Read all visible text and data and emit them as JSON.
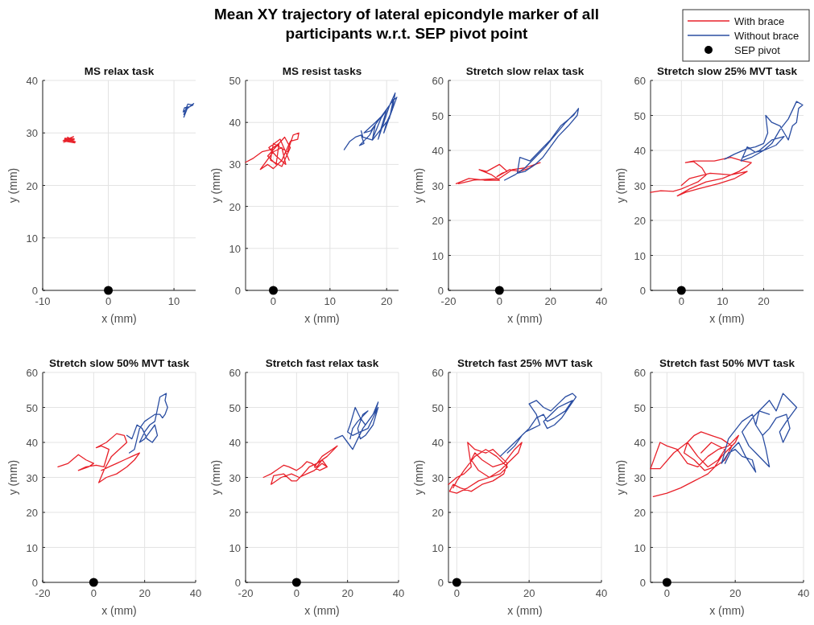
{
  "chart_data": [
    {
      "type": "line",
      "title": "MS relax task",
      "xlabel": "x (mm)",
      "ylabel": "y (mm)",
      "xlim": [
        -10,
        13.3
      ],
      "xticks": [
        -10,
        0,
        10
      ],
      "ylim": [
        0,
        40
      ],
      "yticks": [
        0,
        10,
        20,
        30,
        40
      ],
      "grid": true,
      "annotations": [
        "Mean XY trajectory of lateral epicondyle marker of all participants w.r.t. SEP pivot point"
      ],
      "series": [
        {
          "color": "#e8212a",
          "x": [
            -6.8,
            -5.2,
            -6.6,
            -5.0,
            -6.5,
            -5.3,
            -6.9,
            -5.1,
            -6.2,
            -5.6,
            -6.7,
            -5.2
          ],
          "values": [
            28.2,
            28.9,
            29.0,
            28.3,
            28.6,
            29.3,
            28.5,
            28.1,
            29.2,
            28.4,
            28.8,
            28.7
          ]
        },
        {
          "color": "#2b4ea2",
          "x": [
            11.5,
            12.0,
            12.6,
            13.0,
            12.4,
            11.6,
            11.4,
            12.2,
            12.9,
            12.1,
            11.7,
            11.5
          ],
          "values": [
            33.0,
            34.6,
            35.2,
            35.6,
            35.0,
            34.8,
            34.0,
            34.9,
            35.3,
            35.5,
            34.2,
            33.5
          ]
        },
        {
          "type": "scatter",
          "marker": "circle",
          "color": "#000000",
          "x": [
            0
          ],
          "values": [
            0
          ]
        }
      ]
    },
    {
      "type": "line",
      "title": "MS resist tasks",
      "xlabel": "x (mm)",
      "ylabel": "y (mm)",
      "xlim": [
        -4.9,
        22.1
      ],
      "xticks": [
        0,
        10,
        20
      ],
      "ylim": [
        0,
        50
      ],
      "yticks": [
        0,
        10,
        20,
        30,
        40,
        50
      ],
      "grid": true,
      "series": [
        {
          "color": "#e8212a",
          "x": [
            -4.9,
            -3.5,
            -2,
            -0.5,
            1,
            0.5,
            -1,
            2,
            3,
            1.5,
            -0.5,
            0,
            2.5,
            3.5,
            4.5,
            4.3,
            3,
            1.5,
            0,
            -1,
            -2.3,
            0,
            1.5,
            2.2,
            0.5,
            -0.8,
            1.2,
            2.8
          ],
          "values": [
            30.5,
            31.5,
            33,
            33.5,
            35,
            30,
            32,
            36.5,
            34,
            29.5,
            31,
            35,
            33,
            37,
            37.5,
            36,
            35.5,
            31,
            29,
            30,
            28.8,
            33,
            34,
            30,
            32,
            34,
            36,
            31
          ]
        },
        {
          "color": "#2b4ea2",
          "x": [
            12.5,
            13.5,
            14.5,
            15.5,
            16,
            15.2,
            17,
            18,
            17.5,
            19,
            20,
            19,
            18.5,
            20.5,
            21.5,
            21,
            20,
            19.5,
            21.8,
            21,
            17.2,
            16,
            18,
            19.5,
            21.2,
            20.5,
            17.5,
            15.8,
            15.5
          ],
          "values": [
            33.5,
            35.5,
            36.5,
            37,
            35,
            34.5,
            37,
            39.5,
            36,
            41,
            43,
            38.5,
            36,
            44,
            47,
            43,
            40,
            37.5,
            46,
            45,
            38,
            37.5,
            40,
            42,
            45.5,
            41,
            35.8,
            36.5,
            38
          ]
        },
        {
          "type": "scatter",
          "marker": "circle",
          "color": "#000000",
          "x": [
            0
          ],
          "values": [
            0
          ]
        }
      ]
    },
    {
      "type": "line",
      "title": "Stretch slow relax task",
      "xlabel": "x (mm)",
      "ylabel": "y (mm)",
      "xlim": [
        -20,
        40
      ],
      "xticks": [
        -20,
        0,
        20,
        40
      ],
      "ylim": [
        0,
        60
      ],
      "yticks": [
        0,
        10,
        20,
        30,
        40,
        50,
        60
      ],
      "grid": true,
      "series": [
        {
          "color": "#e8212a",
          "x": [
            -17,
            -12,
            -6,
            0,
            -3,
            -8,
            -5,
            0,
            3,
            1,
            -1,
            4,
            8,
            10,
            12,
            14,
            16,
            10,
            5,
            0,
            -10,
            -16
          ],
          "values": [
            30.5,
            32,
            31.5,
            31.5,
            33,
            34.5,
            34,
            36,
            34,
            33.5,
            32.5,
            34.5,
            34,
            34.5,
            35,
            36,
            36.5,
            35,
            34.5,
            32,
            31.5,
            30.5
          ]
        },
        {
          "color": "#2b4ea2",
          "x": [
            2,
            6,
            10,
            14,
            18,
            22,
            26,
            30,
            31,
            30.5,
            27,
            23,
            20,
            17,
            14,
            10,
            7,
            8,
            12,
            16,
            20,
            24,
            29,
            30.5
          ],
          "values": [
            31.5,
            33,
            35,
            38,
            41,
            44.5,
            48,
            51,
            52,
            50,
            47,
            44,
            41,
            38,
            36,
            34,
            33.5,
            38,
            37,
            40,
            43,
            47,
            50,
            51.5
          ]
        },
        {
          "type": "scatter",
          "marker": "circle",
          "color": "#000000",
          "x": [
            0
          ],
          "values": [
            0
          ]
        }
      ]
    },
    {
      "type": "line",
      "title": "Stretch slow 25% MVT task",
      "xlabel": "x (mm)",
      "ylabel": "y (mm)",
      "xlim": [
        -7.5,
        29.7
      ],
      "xticks": [
        0,
        10,
        20
      ],
      "ylim": [
        0,
        60
      ],
      "yticks": [
        0,
        10,
        20,
        30,
        40,
        50,
        60
      ],
      "grid": true,
      "legend": "top right",
      "series": [
        {
          "name": "With brace",
          "color": "#e8212a",
          "x": [
            -7.5,
            -5,
            -2,
            0,
            2,
            4,
            6,
            5,
            3,
            1,
            3,
            8,
            12,
            15,
            17,
            16,
            14,
            10,
            6,
            2,
            -1,
            1,
            4,
            9,
            13,
            16,
            12,
            7,
            2,
            0
          ],
          "values": [
            28,
            28.5,
            28.3,
            29,
            30,
            31,
            33,
            35,
            36.8,
            36.5,
            37,
            37,
            38,
            37,
            36.5,
            35.5,
            34,
            32,
            31,
            29,
            27,
            28,
            29,
            30.5,
            32,
            34,
            33,
            33.5,
            32,
            30
          ]
        },
        {
          "name": "Without brace",
          "color": "#2b4ea2",
          "x": [
            10.5,
            13,
            16,
            18,
            20,
            21,
            20.5,
            22,
            24,
            25,
            26,
            27,
            28,
            28.5,
            29.5,
            28,
            26,
            24,
            22,
            20,
            18,
            16,
            14.5,
            17,
            20,
            23,
            25,
            22,
            19,
            15
          ],
          "values": [
            37.5,
            39,
            40.5,
            41,
            42,
            45,
            50,
            48,
            47,
            45,
            43,
            47,
            48,
            52,
            53,
            54,
            49,
            46,
            42,
            40,
            39.5,
            41,
            37,
            38,
            40,
            41.5,
            44,
            43,
            40,
            38
          ]
        },
        {
          "name": "SEP pivot",
          "type": "scatter",
          "marker": "circle",
          "color": "#000000",
          "x": [
            0
          ],
          "values": [
            0
          ]
        }
      ]
    },
    {
      "type": "line",
      "title": "Stretch slow 50% MVT task",
      "xlabel": "x (mm)",
      "ylabel": "y (mm)",
      "xlim": [
        -20,
        40
      ],
      "xticks": [
        -20,
        0,
        20,
        40
      ],
      "ylim": [
        0,
        60
      ],
      "yticks": [
        0,
        10,
        20,
        30,
        40,
        50,
        60
      ],
      "grid": true,
      "series": [
        {
          "color": "#e8212a",
          "x": [
            -14,
            -10,
            -6,
            -3,
            0,
            -2,
            -6,
            -3,
            1,
            4,
            6,
            3,
            1,
            5,
            9,
            12,
            13,
            10,
            7,
            4,
            2,
            5,
            9,
            13,
            16,
            18,
            15,
            12,
            9,
            6,
            3
          ],
          "values": [
            33,
            34,
            36.5,
            35,
            34,
            33,
            32,
            33,
            33.5,
            33,
            38,
            39,
            38.5,
            40,
            42.5,
            42,
            40,
            38,
            36,
            32,
            28.5,
            30,
            31,
            33,
            35,
            37,
            36,
            35,
            34,
            33,
            32
          ]
        },
        {
          "color": "#2b4ea2",
          "x": [
            14,
            16,
            17,
            18,
            20,
            22,
            24,
            26,
            27,
            28,
            29,
            28,
            28.5,
            26,
            24,
            22,
            20,
            18,
            20,
            22,
            24,
            25,
            23,
            21,
            19,
            17,
            15,
            13
          ],
          "values": [
            37,
            38,
            41,
            44,
            46,
            47,
            48,
            48,
            47,
            48,
            50,
            52,
            54,
            53,
            46,
            45,
            43,
            40,
            41,
            43,
            45,
            42,
            40,
            41,
            44,
            45,
            41,
            42
          ]
        },
        {
          "type": "scatter",
          "marker": "circle",
          "color": "#000000",
          "x": [
            0
          ],
          "values": [
            0
          ]
        }
      ]
    },
    {
      "type": "line",
      "title": "Stretch fast relax task",
      "xlabel": "x (mm)",
      "ylabel": "y (mm)",
      "xlim": [
        -20,
        40
      ],
      "xticks": [
        -20,
        0,
        20,
        40
      ],
      "ylim": [
        0,
        60
      ],
      "yticks": [
        0,
        10,
        20,
        30,
        40,
        50,
        60
      ],
      "grid": true,
      "series": [
        {
          "color": "#e8212a",
          "x": [
            -13,
            -10,
            -8,
            -5,
            -3,
            0,
            2,
            4,
            6,
            8,
            10,
            12,
            9,
            7,
            10,
            14,
            16,
            12,
            8,
            5,
            2,
            0,
            -2,
            -5,
            -9,
            -10,
            -6,
            -2,
            1,
            4,
            7,
            10,
            12
          ],
          "values": [
            30,
            31,
            32,
            33.5,
            33,
            32,
            33,
            34.5,
            34,
            33,
            35,
            33,
            32,
            33,
            36,
            38,
            39,
            36,
            34,
            33,
            30.5,
            29,
            29,
            31,
            30.5,
            28,
            30,
            31,
            30,
            31,
            32,
            34,
            33
          ]
        },
        {
          "color": "#2b4ea2",
          "x": [
            15,
            18,
            20,
            22,
            24,
            26,
            28,
            30,
            32,
            31,
            29,
            27,
            25,
            23,
            21,
            20,
            22,
            25,
            28,
            30,
            32,
            30,
            27,
            25,
            24,
            26,
            28,
            24,
            22,
            21
          ],
          "values": [
            41,
            42,
            40,
            38,
            41,
            44,
            46,
            48,
            51.5,
            49,
            47,
            45,
            47,
            50,
            45,
            43,
            42,
            43,
            44,
            47,
            50,
            45,
            42,
            41,
            44,
            48,
            49,
            46,
            44,
            41
          ]
        },
        {
          "type": "scatter",
          "marker": "circle",
          "color": "#000000",
          "x": [
            0
          ],
          "values": [
            0
          ]
        }
      ]
    },
    {
      "type": "line",
      "title": "Stretch fast 25% MVT task",
      "xlabel": "x (mm)",
      "ylabel": "y (mm)",
      "xlim": [
        -2.3,
        40
      ],
      "xticks": [
        0,
        20,
        40
      ],
      "ylim": [
        0,
        60
      ],
      "yticks": [
        0,
        10,
        20,
        30,
        40,
        50,
        60
      ],
      "grid": true,
      "series": [
        {
          "color": "#e8212a",
          "x": [
            -2.3,
            0,
            2,
            4,
            3,
            5,
            8,
            10,
            12,
            14,
            13,
            10,
            7,
            4,
            1,
            -1,
            -2,
            0,
            3,
            6,
            9,
            12,
            15,
            17,
            18,
            16,
            13,
            10,
            7,
            5,
            4,
            6,
            9,
            12,
            14,
            11,
            8,
            5,
            2,
            0,
            -1
          ],
          "values": [
            28,
            30,
            31,
            33,
            40,
            38,
            37,
            38,
            36,
            34,
            31,
            29,
            28,
            26,
            27,
            28,
            26,
            25.5,
            27,
            29,
            30,
            32,
            35,
            37,
            40,
            38,
            34,
            33,
            35,
            37,
            35,
            32,
            30,
            31,
            33,
            36,
            38,
            36,
            32,
            29,
            27
          ]
        },
        {
          "color": "#2b4ea2",
          "x": [
            12,
            14,
            16,
            17,
            19,
            21,
            23,
            22,
            20,
            22,
            24,
            26,
            28,
            30,
            32,
            33,
            31,
            29,
            27,
            25,
            24,
            26,
            28,
            30,
            32,
            30,
            27,
            25,
            24,
            22,
            20,
            18,
            16,
            14
          ],
          "values": [
            36,
            38,
            40,
            41,
            43,
            44,
            45,
            48,
            51,
            52,
            50,
            49,
            51,
            53,
            54,
            53,
            50,
            47,
            45,
            44,
            46,
            48,
            50,
            51,
            52,
            49,
            47,
            46,
            48,
            47,
            44,
            42,
            39,
            37
          ]
        },
        {
          "type": "scatter",
          "marker": "circle",
          "color": "#000000",
          "x": [
            0
          ],
          "values": [
            0
          ]
        }
      ]
    },
    {
      "type": "line",
      "title": "Stretch fast 50% MVT task",
      "xlabel": "x (mm)",
      "ylabel": "y (mm)",
      "xlim": [
        -4.8,
        40
      ],
      "xticks": [
        0,
        20,
        40
      ],
      "ylim": [
        0,
        60
      ],
      "yticks": [
        0,
        10,
        20,
        30,
        40,
        50,
        60
      ],
      "grid": true,
      "series": [
        {
          "color": "#e8212a",
          "x": [
            -4,
            0,
            4,
            8,
            10,
            12,
            14,
            16,
            18,
            20,
            21,
            18,
            15,
            12,
            9,
            6,
            3,
            0,
            -2,
            -4.8,
            -2,
            2,
            6,
            8,
            10,
            13,
            16,
            19,
            17,
            14,
            11,
            8,
            5,
            6,
            9,
            12,
            15,
            17,
            13,
            10
          ],
          "values": [
            24.5,
            25.5,
            27,
            29,
            30,
            31,
            33,
            36,
            38,
            40,
            42,
            39,
            38,
            36,
            33,
            34,
            38,
            39,
            40,
            32.5,
            32.5,
            37,
            40,
            42,
            43,
            42,
            41,
            39,
            35,
            33,
            32,
            35,
            37,
            40,
            36,
            33,
            35,
            38,
            40,
            37
          ]
        },
        {
          "color": "#2b4ea2",
          "x": [
            17,
            19,
            21,
            23,
            25,
            26,
            25,
            22,
            20,
            18,
            16,
            18,
            22,
            25,
            26,
            28,
            29,
            30,
            28,
            26,
            24,
            22,
            25,
            28,
            30,
            32,
            34,
            36,
            38,
            35,
            33,
            34,
            36,
            35,
            32,
            30,
            28,
            26,
            27,
            30
          ],
          "values": [
            34,
            38,
            40,
            36,
            33,
            31.5,
            35,
            36,
            38,
            37,
            34,
            41,
            46,
            48,
            45,
            42,
            38,
            33,
            35,
            37,
            39,
            43,
            47,
            50,
            52,
            49,
            54,
            52,
            50,
            46,
            43,
            40,
            44,
            48,
            47,
            44,
            42,
            45,
            49,
            48
          ]
        },
        {
          "type": "scatter",
          "marker": "circle",
          "color": "#000000",
          "x": [
            0
          ],
          "values": [
            0
          ]
        }
      ]
    }
  ]
}
